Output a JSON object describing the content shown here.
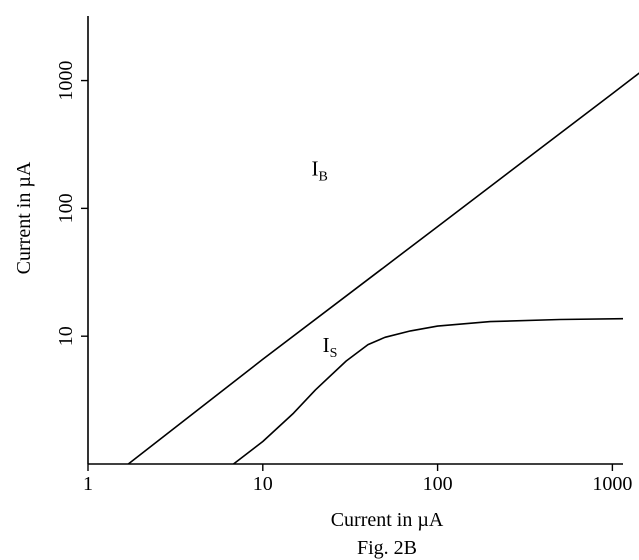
{
  "chart_data": {
    "type": "line",
    "xscale": "log",
    "yscale": "log",
    "xlabel": "Current in µA",
    "ylabel": "Current in µA",
    "caption": "Fig. 2B",
    "xlim": [
      1,
      1150
    ],
    "ylim": [
      1,
      3200
    ],
    "x_ticks": [
      {
        "value": 1,
        "label": "1"
      },
      {
        "value": 10,
        "label": "10"
      },
      {
        "value": 100,
        "label": "100"
      },
      {
        "value": 1000,
        "label": "1000"
      }
    ],
    "y_ticks": [
      {
        "value": 10,
        "label": "10"
      },
      {
        "value": 100,
        "label": "100"
      },
      {
        "value": 1000,
        "label": "1000"
      }
    ],
    "grid": false,
    "series": [
      {
        "name": "I",
        "subscript": "B",
        "label_at": [
          19,
          180
        ],
        "points": [
          [
            1.7,
            1
          ],
          [
            10,
            6.6
          ],
          [
            100,
            72
          ],
          [
            1000,
            790
          ],
          [
            1750,
            1420
          ]
        ]
      },
      {
        "name": "I",
        "subscript": "S",
        "label_at": [
          22,
          7.5
        ],
        "points": [
          [
            6.8,
            1
          ],
          [
            10,
            1.5
          ],
          [
            15,
            2.5
          ],
          [
            20,
            3.8
          ],
          [
            30,
            6.4
          ],
          [
            40,
            8.6
          ],
          [
            50,
            9.8
          ],
          [
            70,
            11
          ],
          [
            100,
            12
          ],
          [
            200,
            13
          ],
          [
            500,
            13.5
          ],
          [
            1150,
            13.7
          ]
        ]
      }
    ]
  }
}
